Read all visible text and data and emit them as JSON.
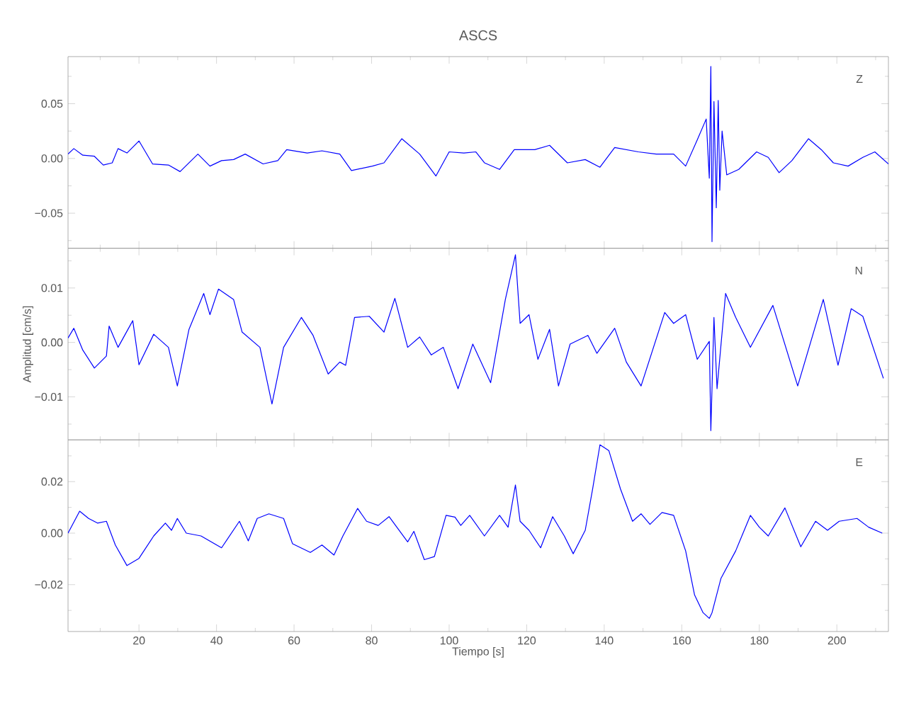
{
  "chart_data": [
    {
      "type": "line",
      "title": "ASCS",
      "annotations": [
        "Z"
      ],
      "color": "#0000ff",
      "tick_labels": "y",
      "xlim": [
        1.7,
        213.3
      ],
      "ylim": [
        -0.082,
        0.093
      ],
      "xticks": [
        {
          "value": 10,
          "label": null
        },
        20,
        {
          "value": 30,
          "label": null
        },
        40,
        {
          "value": 50,
          "label": null
        },
        60,
        {
          "value": 70,
          "label": null
        },
        80,
        {
          "value": 90,
          "label": null
        },
        100,
        {
          "value": 110,
          "label": null
        },
        120,
        {
          "value": 130,
          "label": null
        },
        140,
        {
          "value": 150,
          "label": null
        },
        160,
        {
          "value": 170,
          "label": null
        },
        180,
        {
          "value": 190,
          "label": null
        },
        200,
        {
          "value": 210,
          "label": null
        }
      ],
      "yticks": [
        {
          "value": -0.075,
          "label": null
        },
        {
          "value": -0.05,
          "label": "−0.05"
        },
        {
          "value": -0.025,
          "label": null
        },
        {
          "value": 0,
          "label": "0.00"
        },
        {
          "value": 0.025,
          "label": null
        },
        {
          "value": 0.05,
          "label": "0.05"
        },
        {
          "value": 0.075,
          "label": null
        }
      ],
      "x": [
        1.7,
        3.2,
        5.5,
        8.5,
        10.8,
        13.1,
        14.6,
        16.9,
        20.0,
        23.5,
        27.6,
        30.6,
        35.2,
        38.3,
        41.3,
        44.4,
        47.4,
        52.0,
        55.8,
        58.1,
        63.4,
        67.2,
        71.8,
        74.8,
        80.2,
        83.2,
        87.8,
        92.4,
        96.6,
        100.0,
        103.8,
        106.9,
        109.1,
        113.0,
        116.8,
        122.1,
        125.9,
        130.5,
        135.1,
        138.9,
        142.7,
        148.8,
        153.4,
        157.9,
        161.0,
        164.0,
        166.3,
        167.1,
        167.5,
        167.8,
        168.3,
        168.9,
        169.4,
        169.8,
        170.4,
        171.6,
        174.7,
        179.3,
        182.3,
        185.1,
        188.4,
        192.7,
        196.0,
        199.1,
        202.9,
        206.7,
        209.8,
        213.3
      ],
      "values": [
        0.004,
        0.009,
        0.003,
        0.002,
        -0.006,
        -0.004,
        0.009,
        0.005,
        0.016,
        -0.005,
        -0.006,
        -0.012,
        0.004,
        -0.007,
        -0.002,
        -0.001,
        0.004,
        -0.005,
        -0.002,
        0.008,
        0.005,
        0.007,
        0.004,
        -0.011,
        -0.007,
        -0.004,
        0.018,
        0.004,
        -0.016,
        0.006,
        0.005,
        0.006,
        -0.004,
        -0.01,
        0.008,
        0.008,
        0.012,
        -0.004,
        -0.001,
        -0.008,
        0.01,
        0.006,
        0.004,
        0.004,
        -0.007,
        0.017,
        0.036,
        -0.018,
        0.084,
        -0.076,
        0.052,
        -0.045,
        0.053,
        -0.029,
        0.025,
        -0.015,
        -0.01,
        0.006,
        0.001,
        -0.013,
        -0.002,
        0.018,
        0.008,
        -0.004,
        -0.007,
        0.001,
        0.006,
        -0.005
      ]
    },
    {
      "type": "line",
      "ylabel": "Amplitud [cm/s]",
      "annotations": [
        "N"
      ],
      "color": "#0000ff",
      "tick_labels": "y",
      "xlim": [
        1.7,
        213.3
      ],
      "ylim": [
        -0.0179,
        0.0173
      ],
      "xticks": [
        {
          "value": 10,
          "label": null
        },
        20,
        {
          "value": 30,
          "label": null
        },
        40,
        {
          "value": 50,
          "label": null
        },
        60,
        {
          "value": 70,
          "label": null
        },
        80,
        {
          "value": 90,
          "label": null
        },
        100,
        {
          "value": 110,
          "label": null
        },
        120,
        {
          "value": 130,
          "label": null
        },
        140,
        {
          "value": 150,
          "label": null
        },
        160,
        {
          "value": 170,
          "label": null
        },
        180,
        {
          "value": 190,
          "label": null
        },
        200,
        {
          "value": 210,
          "label": null
        }
      ],
      "yticks": [
        {
          "value": -0.015,
          "label": null
        },
        {
          "value": -0.01,
          "label": "−0.01"
        },
        {
          "value": -0.005,
          "label": null
        },
        {
          "value": 0,
          "label": "0.00"
        },
        {
          "value": 0.005,
          "label": null
        },
        {
          "value": 0.01,
          "label": "0.01"
        },
        {
          "value": 0.015,
          "label": null
        }
      ],
      "x": [
        1.7,
        3.2,
        5.5,
        8.5,
        11.6,
        12.3,
        14.6,
        18.4,
        20.0,
        23.8,
        27.6,
        29.9,
        32.9,
        36.7,
        38.3,
        40.5,
        44.4,
        46.6,
        51.2,
        54.3,
        57.3,
        61.9,
        64.9,
        68.8,
        71.8,
        73.3,
        75.6,
        79.4,
        83.2,
        86.0,
        89.3,
        92.4,
        95.4,
        98.5,
        102.3,
        106.1,
        110.7,
        114.5,
        117.1,
        118.3,
        120.6,
        122.9,
        125.9,
        128.2,
        131.2,
        135.8,
        138.1,
        142.7,
        145.7,
        149.5,
        155.6,
        157.9,
        161.0,
        164.0,
        167.1,
        167.5,
        168.3,
        169.1,
        171.3,
        173.9,
        177.7,
        183.5,
        189.9,
        196.5,
        200.3,
        203.7,
        206.7,
        212.0
      ],
      "values": [
        0.0008,
        0.0026,
        -0.0014,
        -0.0047,
        -0.0025,
        0.003,
        -0.0009,
        0.004,
        -0.0041,
        0.0015,
        -0.0009,
        -0.008,
        0.0024,
        0.009,
        0.0051,
        0.0098,
        0.0079,
        0.0019,
        -0.0009,
        -0.0113,
        -0.0009,
        0.0046,
        0.0013,
        -0.0058,
        -0.0036,
        -0.0042,
        0.0046,
        0.0048,
        0.0019,
        0.0081,
        -0.0009,
        0.001,
        -0.0023,
        -0.0009,
        -0.0085,
        -0.0003,
        -0.0074,
        0.0079,
        0.0161,
        0.0035,
        0.0051,
        -0.0031,
        0.0024,
        -0.008,
        -0.0003,
        0.0013,
        -0.002,
        0.0026,
        -0.0036,
        -0.008,
        0.0055,
        0.0035,
        0.0051,
        -0.0031,
        0.0002,
        -0.0162,
        0.0046,
        -0.0085,
        0.009,
        0.0046,
        -0.0009,
        0.0068,
        -0.008,
        0.0079,
        -0.0042,
        0.0062,
        0.0048,
        -0.0066
      ]
    },
    {
      "type": "line",
      "xlabel": "Tiempo [s]",
      "annotations": [
        "E"
      ],
      "color": "#0000ff",
      "xlim": [
        1.7,
        213.3
      ],
      "ylim": [
        -0.0382,
        0.0362
      ],
      "xticks": [
        {
          "value": 10,
          "label": null
        },
        20,
        {
          "value": 30,
          "label": null
        },
        40,
        {
          "value": 50,
          "label": null
        },
        60,
        {
          "value": 70,
          "label": null
        },
        80,
        {
          "value": 90,
          "label": null
        },
        100,
        {
          "value": 110,
          "label": null
        },
        120,
        {
          "value": 130,
          "label": null
        },
        140,
        {
          "value": 150,
          "label": null
        },
        160,
        {
          "value": 170,
          "label": null
        },
        180,
        {
          "value": 190,
          "label": null
        },
        200,
        {
          "value": 210,
          "label": null
        }
      ],
      "yticks": [
        {
          "value": -0.03,
          "label": null
        },
        {
          "value": -0.02,
          "label": "−0.02"
        },
        {
          "value": -0.01,
          "label": null
        },
        {
          "value": 0,
          "label": "0.00"
        },
        {
          "value": 0.01,
          "label": null
        },
        {
          "value": 0.02,
          "label": "0.02"
        },
        {
          "value": 0.03,
          "label": null
        }
      ],
      "x": [
        1.7,
        4.7,
        7.0,
        9.3,
        11.6,
        13.9,
        16.9,
        20.0,
        23.8,
        26.8,
        28.4,
        29.9,
        32.2,
        36.0,
        41.3,
        45.9,
        48.2,
        50.5,
        53.5,
        57.3,
        59.6,
        64.2,
        67.2,
        70.3,
        72.6,
        76.4,
        78.7,
        81.7,
        84.5,
        89.3,
        90.9,
        93.6,
        96.2,
        99.2,
        101.5,
        103.0,
        105.3,
        109.1,
        113.0,
        115.2,
        117.1,
        118.3,
        120.6,
        123.6,
        126.7,
        129.7,
        132.0,
        135.1,
        137.0,
        138.9,
        141.2,
        144.2,
        147.3,
        149.5,
        151.8,
        154.9,
        157.9,
        161.0,
        163.3,
        165.5,
        167.1,
        167.8,
        170.1,
        173.9,
        177.7,
        180.0,
        182.3,
        186.6,
        190.7,
        194.5,
        197.6,
        200.6,
        205.2,
        208.2,
        211.7
      ],
      "values": [
        0.0,
        0.0085,
        0.0057,
        0.0039,
        0.0046,
        -0.0046,
        -0.0126,
        -0.0098,
        -0.0011,
        0.0039,
        0.0011,
        0.0057,
        0.0,
        -0.0011,
        -0.0057,
        0.0046,
        -0.003,
        0.0057,
        0.0075,
        0.0057,
        -0.0041,
        -0.0075,
        -0.0046,
        -0.0085,
        -0.0011,
        0.0096,
        0.0046,
        0.003,
        0.0064,
        -0.0034,
        0.0007,
        -0.0103,
        -0.0091,
        0.0069,
        0.0062,
        0.003,
        0.0069,
        -0.0011,
        0.0069,
        0.0023,
        0.0187,
        0.0046,
        0.0011,
        -0.0057,
        0.0064,
        -0.0011,
        -0.008,
        0.0011,
        0.0171,
        0.0343,
        0.032,
        0.0171,
        0.0046,
        0.0075,
        0.0034,
        0.008,
        0.0069,
        -0.0069,
        -0.024,
        -0.0309,
        -0.0331,
        -0.0309,
        -0.0176,
        -0.0069,
        0.0069,
        0.0023,
        -0.0011,
        0.0098,
        -0.0053,
        0.0046,
        0.0011,
        0.0046,
        0.0057,
        0.0023,
        0.0
      ]
    }
  ]
}
